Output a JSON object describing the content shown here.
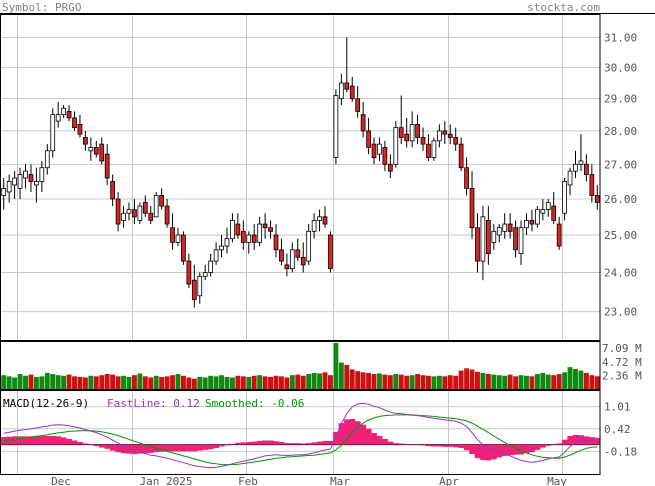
{
  "header": {
    "symbol_label": "Symbol: PRGO",
    "site_label": "stockta.com"
  },
  "macd_header": {
    "title": "MACD(12-26-9)",
    "fast_label": "FastLine: 0.12",
    "smooth_label": "Smoothed: -0.06"
  },
  "colors": {
    "up": "#ffffff",
    "down": "#dd2222",
    "vol_up": "#118811",
    "vol_down": "#cc1111",
    "hist": "#ee2277",
    "fast": "#9933cc",
    "smooth": "#009900",
    "grid": "#c8c8c8"
  },
  "chart_data": [
    {
      "type": "candlestick",
      "title": "",
      "x_labels": [
        "Dec",
        "Jan 2025",
        "Feb",
        "Mar",
        "Apr",
        "May"
      ],
      "y_ticks": [
        "31.00",
        "30.00",
        "29.00",
        "28.00",
        "27.00",
        "26.00",
        "25.00",
        "24.00",
        "23.00"
      ],
      "ylim": [
        22.3,
        31.8
      ],
      "scale": "log",
      "grid": true,
      "ohlc": [
        [
          26.1,
          26.6,
          25.7,
          26.3
        ],
        [
          26.2,
          26.7,
          25.9,
          26.5
        ],
        [
          26.4,
          26.8,
          26.0,
          26.6
        ],
        [
          26.3,
          26.9,
          26.0,
          26.7
        ],
        [
          26.6,
          27.0,
          26.3,
          26.8
        ],
        [
          26.7,
          27.0,
          26.2,
          26.5
        ],
        [
          26.4,
          26.9,
          25.9,
          26.5
        ],
        [
          26.5,
          27.1,
          26.2,
          26.9
        ],
        [
          26.9,
          27.6,
          26.7,
          27.4
        ],
        [
          27.4,
          28.7,
          27.2,
          28.5
        ],
        [
          28.3,
          28.9,
          28.1,
          28.5
        ],
        [
          28.5,
          28.8,
          28.4,
          28.7
        ],
        [
          28.6,
          28.8,
          28.3,
          28.4
        ],
        [
          28.4,
          28.6,
          28.0,
          28.1
        ],
        [
          28.2,
          28.5,
          27.8,
          27.9
        ],
        [
          27.8,
          28.0,
          27.4,
          27.6
        ],
        [
          27.4,
          27.8,
          27.1,
          27.5
        ],
        [
          27.5,
          27.7,
          27.2,
          27.3
        ],
        [
          27.6,
          27.8,
          27.0,
          27.1
        ],
        [
          27.3,
          27.6,
          26.4,
          26.6
        ],
        [
          26.5,
          26.7,
          25.8,
          26.0
        ],
        [
          26.0,
          26.2,
          25.1,
          25.3
        ],
        [
          25.4,
          25.8,
          25.2,
          25.6
        ],
        [
          25.6,
          25.9,
          25.4,
          25.7
        ],
        [
          25.7,
          26.0,
          25.3,
          25.5
        ],
        [
          25.4,
          25.9,
          25.3,
          25.8
        ],
        [
          25.9,
          26.1,
          25.5,
          25.6
        ],
        [
          25.6,
          25.8,
          25.3,
          25.4
        ],
        [
          25.5,
          26.2,
          25.5,
          26.1
        ],
        [
          26.1,
          26.3,
          25.7,
          25.8
        ],
        [
          25.8,
          26.0,
          25.2,
          25.3
        ],
        [
          25.2,
          25.6,
          24.6,
          24.8
        ],
        [
          24.8,
          25.2,
          24.7,
          25.0
        ],
        [
          25.0,
          25.1,
          24.2,
          24.3
        ],
        [
          24.3,
          24.5,
          23.6,
          23.7
        ],
        [
          23.8,
          24.2,
          23.1,
          23.3
        ],
        [
          23.4,
          24.0,
          23.2,
          23.9
        ],
        [
          23.9,
          24.2,
          23.8,
          24.0
        ],
        [
          24.0,
          24.5,
          23.9,
          24.3
        ],
        [
          24.3,
          24.8,
          24.2,
          24.6
        ],
        [
          24.6,
          25.0,
          24.4,
          24.7
        ],
        [
          24.7,
          25.2,
          24.5,
          24.9
        ],
        [
          24.9,
          25.6,
          24.8,
          25.4
        ],
        [
          25.3,
          25.6,
          24.9,
          25.0
        ],
        [
          25.1,
          25.4,
          24.6,
          24.8
        ],
        [
          24.8,
          25.1,
          24.5,
          25.0
        ],
        [
          25.0,
          25.3,
          24.6,
          24.8
        ],
        [
          24.8,
          25.5,
          24.7,
          25.3
        ],
        [
          25.3,
          25.6,
          24.9,
          25.2
        ],
        [
          25.2,
          25.4,
          24.9,
          25.1
        ],
        [
          25.0,
          25.3,
          24.4,
          24.6
        ],
        [
          24.6,
          24.9,
          24.2,
          24.3
        ],
        [
          24.2,
          24.5,
          23.9,
          24.1
        ],
        [
          24.1,
          24.8,
          24.0,
          24.6
        ],
        [
          24.6,
          24.9,
          24.3,
          24.4
        ],
        [
          24.4,
          24.8,
          24.0,
          24.2
        ],
        [
          24.3,
          25.3,
          24.2,
          25.1
        ],
        [
          25.1,
          25.6,
          24.9,
          25.4
        ],
        [
          25.4,
          25.7,
          25.1,
          25.5
        ],
        [
          25.5,
          25.8,
          25.2,
          25.3
        ],
        [
          25.0,
          25.1,
          24.0,
          24.1
        ],
        [
          27.2,
          29.3,
          27.0,
          29.1
        ],
        [
          29.0,
          29.8,
          28.8,
          29.5
        ],
        [
          29.5,
          31.0,
          29.2,
          29.3
        ],
        [
          29.4,
          29.7,
          28.9,
          29.0
        ],
        [
          29.0,
          29.4,
          28.4,
          28.6
        ],
        [
          28.5,
          28.9,
          27.8,
          28.0
        ],
        [
          28.0,
          28.4,
          27.3,
          27.5
        ],
        [
          27.6,
          27.8,
          27.0,
          27.2
        ],
        [
          27.3,
          27.8,
          27.1,
          27.6
        ],
        [
          27.5,
          27.7,
          26.8,
          27.0
        ],
        [
          27.0,
          27.3,
          26.6,
          26.8
        ],
        [
          27.0,
          28.3,
          26.9,
          28.1
        ],
        [
          28.1,
          29.1,
          27.6,
          27.8
        ],
        [
          27.9,
          28.4,
          27.5,
          27.7
        ],
        [
          27.7,
          28.6,
          27.5,
          28.2
        ],
        [
          28.2,
          28.5,
          27.6,
          27.8
        ],
        [
          27.8,
          28.1,
          27.4,
          27.6
        ],
        [
          27.6,
          27.9,
          27.1,
          27.2
        ],
        [
          27.2,
          27.8,
          27.1,
          27.7
        ],
        [
          27.7,
          28.2,
          27.5,
          28.0
        ],
        [
          28.0,
          28.3,
          27.6,
          27.9
        ],
        [
          27.9,
          28.2,
          27.6,
          27.8
        ],
        [
          27.8,
          28.1,
          27.4,
          27.6
        ],
        [
          27.6,
          27.8,
          26.8,
          26.9
        ],
        [
          26.9,
          27.2,
          26.1,
          26.3
        ],
        [
          26.3,
          26.8,
          24.9,
          25.2
        ],
        [
          25.2,
          25.6,
          24.0,
          24.3
        ],
        [
          24.3,
          25.8,
          23.8,
          25.5
        ],
        [
          25.4,
          25.8,
          24.2,
          24.5
        ],
        [
          24.8,
          25.3,
          24.6,
          25.1
        ],
        [
          25.0,
          25.3,
          24.8,
          25.2
        ],
        [
          25.1,
          25.6,
          24.9,
          25.3
        ],
        [
          25.3,
          25.6,
          24.9,
          25.1
        ],
        [
          25.2,
          25.4,
          24.4,
          24.6
        ],
        [
          24.5,
          25.4,
          24.2,
          25.2
        ],
        [
          25.2,
          25.6,
          25.0,
          25.4
        ],
        [
          25.4,
          25.7,
          25.1,
          25.3
        ],
        [
          25.3,
          25.8,
          25.2,
          25.7
        ],
        [
          25.6,
          26.0,
          25.4,
          25.7
        ],
        [
          25.7,
          26.0,
          25.5,
          25.9
        ],
        [
          25.8,
          26.2,
          25.3,
          25.4
        ],
        [
          25.3,
          25.5,
          24.6,
          24.7
        ],
        [
          25.6,
          26.6,
          25.4,
          26.5
        ],
        [
          26.4,
          26.9,
          26.1,
          26.8
        ],
        [
          26.8,
          27.4,
          26.6,
          27.0
        ],
        [
          27.0,
          27.9,
          26.8,
          27.1
        ],
        [
          27.0,
          27.3,
          26.5,
          26.7
        ],
        [
          26.7,
          27.0,
          25.9,
          26.1
        ],
        [
          26.1,
          26.4,
          25.7,
          25.9
        ]
      ],
      "volume_ticks": [
        "7.09 M",
        "4.72 M",
        "2.36 M"
      ],
      "volume_max": 8.0,
      "volume": [
        2.4,
        2.2,
        2.0,
        2.6,
        2.3,
        2.5,
        2.1,
        2.2,
        2.8,
        2.6,
        2.4,
        2.3,
        2.5,
        2.2,
        2.1,
        2.0,
        2.3,
        2.2,
        2.4,
        2.6,
        2.5,
        2.2,
        2.3,
        2.1,
        2.4,
        2.7,
        2.2,
        2.0,
        2.3,
        2.1,
        2.2,
        2.4,
        2.6,
        2.3,
        2.0,
        1.8,
        2.1,
        2.0,
        2.3,
        2.2,
        2.4,
        2.1,
        2.0,
        2.3,
        2.2,
        2.1,
        2.3,
        2.4,
        2.2,
        2.1,
        2.3,
        2.2,
        2.0,
        2.4,
        2.5,
        2.3,
        2.6,
        2.8,
        2.7,
        2.9,
        2.4,
        8.0,
        4.6,
        4.2,
        3.4,
        3.1,
        2.9,
        2.8,
        2.6,
        2.7,
        2.5,
        2.4,
        2.6,
        2.5,
        2.3,
        2.4,
        2.6,
        2.4,
        2.3,
        2.2,
        2.3,
        2.2,
        2.4,
        2.3,
        3.2,
        3.6,
        3.4,
        3.0,
        2.8,
        2.6,
        2.5,
        2.4,
        2.3,
        2.5,
        2.2,
        2.4,
        2.3,
        2.2,
        2.6,
        2.8,
        2.5,
        2.4,
        2.6,
        2.9,
        3.8,
        3.5,
        3.2,
        2.8,
        2.4,
        2.2
      ],
      "macd_ticks": [
        "1.01",
        "0.42",
        "-0.18"
      ],
      "macd_ylim": [
        -0.78,
        1.45
      ],
      "macd_fast": [
        0.3,
        0.33,
        0.36,
        0.38,
        0.4,
        0.42,
        0.44,
        0.47,
        0.49,
        0.52,
        0.53,
        0.52,
        0.5,
        0.47,
        0.44,
        0.4,
        0.36,
        0.32,
        0.26,
        0.2,
        0.12,
        0.04,
        -0.04,
        -0.1,
        -0.16,
        -0.2,
        -0.24,
        -0.28,
        -0.3,
        -0.33,
        -0.36,
        -0.4,
        -0.44,
        -0.48,
        -0.52,
        -0.56,
        -0.58,
        -0.6,
        -0.61,
        -0.6,
        -0.58,
        -0.55,
        -0.51,
        -0.47,
        -0.44,
        -0.41,
        -0.38,
        -0.34,
        -0.3,
        -0.28,
        -0.27,
        -0.28,
        -0.29,
        -0.28,
        -0.27,
        -0.27,
        -0.25,
        -0.22,
        -0.18,
        -0.14,
        -0.12,
        0.2,
        0.55,
        0.82,
        1.0,
        1.08,
        1.1,
        1.07,
        1.02,
        0.98,
        0.92,
        0.86,
        0.83,
        0.82,
        0.8,
        0.79,
        0.77,
        0.75,
        0.72,
        0.7,
        0.68,
        0.66,
        0.64,
        0.62,
        0.57,
        0.48,
        0.32,
        0.13,
        0.0,
        -0.1,
        -0.16,
        -0.2,
        -0.24,
        -0.3,
        -0.36,
        -0.42,
        -0.45,
        -0.47,
        -0.45,
        -0.42,
        -0.38,
        -0.35,
        -0.33,
        -0.2,
        -0.05,
        0.05,
        0.1,
        0.12,
        0.13,
        0.12
      ],
      "macd_smooth": [
        0.1,
        0.12,
        0.14,
        0.16,
        0.18,
        0.2,
        0.22,
        0.24,
        0.26,
        0.29,
        0.31,
        0.33,
        0.35,
        0.36,
        0.37,
        0.37,
        0.37,
        0.36,
        0.34,
        0.31,
        0.28,
        0.24,
        0.19,
        0.14,
        0.09,
        0.04,
        -0.01,
        -0.06,
        -0.1,
        -0.14,
        -0.18,
        -0.22,
        -0.26,
        -0.3,
        -0.34,
        -0.38,
        -0.42,
        -0.46,
        -0.49,
        -0.51,
        -0.53,
        -0.53,
        -0.53,
        -0.52,
        -0.5,
        -0.48,
        -0.46,
        -0.44,
        -0.41,
        -0.39,
        -0.36,
        -0.35,
        -0.33,
        -0.32,
        -0.31,
        -0.3,
        -0.29,
        -0.28,
        -0.26,
        -0.24,
        -0.22,
        -0.14,
        -0.02,
        0.15,
        0.32,
        0.46,
        0.57,
        0.65,
        0.71,
        0.75,
        0.77,
        0.78,
        0.79,
        0.79,
        0.79,
        0.78,
        0.78,
        0.77,
        0.76,
        0.75,
        0.73,
        0.72,
        0.7,
        0.69,
        0.66,
        0.63,
        0.57,
        0.49,
        0.41,
        0.32,
        0.23,
        0.14,
        0.06,
        -0.02,
        -0.09,
        -0.16,
        -0.22,
        -0.27,
        -0.31,
        -0.34,
        -0.35,
        -0.36,
        -0.36,
        -0.33,
        -0.28,
        -0.21,
        -0.15,
        -0.1,
        -0.07,
        -0.06
      ]
    }
  ]
}
